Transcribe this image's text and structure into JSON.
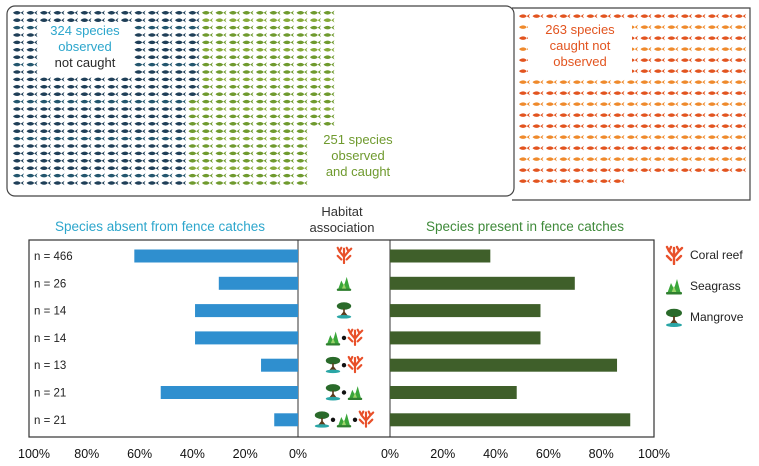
{
  "colors": {
    "not_caught": "#1f3f58",
    "not_caught_alt": "#23566e",
    "caught_observed": "#6f9a2e",
    "caught_observed_alt": "#86aa3a",
    "caught_not_observed": "#e2541f",
    "caught_not_observed_alt": "#ef8a2c",
    "absent_bar": "#2f8fcf",
    "absent_bar_light": "#4cc0e8",
    "present_bar": "#3f5f2a",
    "absent_label": "#2ca6cc",
    "present_label": "#3f8a3a",
    "coral": "#e8502a",
    "seagrass": "#3aa63a",
    "mangrove": "#2a6a2a"
  },
  "icons": {
    "fish_unit": "fish-icon",
    "coral": "coral-icon",
    "seagrass": "seagrass-icon",
    "mangrove": "mangrove-icon"
  },
  "waffle": {
    "observed_not_caught": {
      "count": 324,
      "lines": [
        "324 species",
        "observed",
        "not caught"
      ]
    },
    "observed_and_caught": {
      "count": 251,
      "lines": [
        "251 species",
        "observed",
        "and caught"
      ]
    },
    "caught_not_observed": {
      "count": 263,
      "lines": [
        "263 species",
        "caught not",
        "observed"
      ]
    }
  },
  "chart_data": {
    "type": "bar",
    "left_title": "Species absent from fence catches",
    "center_title_lines": [
      "Habitat",
      "association"
    ],
    "right_title": "Species present in fence catches",
    "categories": [
      {
        "n": "n = 466",
        "habitats": [
          "coral"
        ]
      },
      {
        "n": "n = 26",
        "habitats": [
          "seagrass"
        ]
      },
      {
        "n": "n = 14",
        "habitats": [
          "mangrove"
        ]
      },
      {
        "n": "n = 14",
        "habitats": [
          "seagrass",
          "coral"
        ]
      },
      {
        "n": "n = 13",
        "habitats": [
          "mangrove",
          "coral"
        ]
      },
      {
        "n": "n = 21",
        "habitats": [
          "mangrove",
          "seagrass"
        ]
      },
      {
        "n": "n = 21",
        "habitats": [
          "mangrove",
          "seagrass",
          "coral"
        ]
      }
    ],
    "series": [
      {
        "name": "Species absent from fence catches",
        "values": [
          62,
          30,
          39,
          39,
          14,
          52,
          9
        ]
      },
      {
        "name": "Species present in fence catches",
        "values": [
          38,
          70,
          57,
          57,
          86,
          48,
          91
        ]
      }
    ],
    "left_ticks": [
      "100%",
      "80%",
      "60%",
      "40%",
      "20%",
      "0%"
    ],
    "right_ticks": [
      "0%",
      "20%",
      "40%",
      "60%",
      "80%",
      "100%"
    ],
    "xlim": [
      0,
      100
    ],
    "legend": [
      "Coral reef",
      "Seagrass",
      "Mangrove"
    ],
    "legend_position": "right"
  }
}
